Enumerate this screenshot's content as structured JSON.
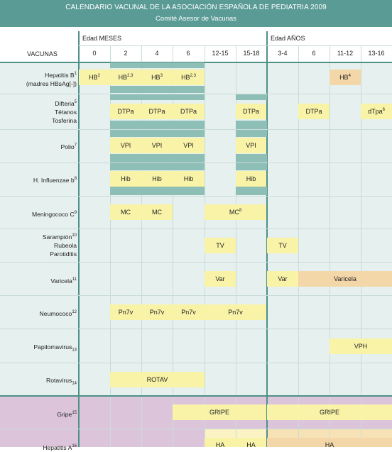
{
  "title": "CALENDARIO VACUNAL DE LA ASOCIACIÓN ESPAÑOLA DE PEDIATRIA 2009",
  "subtitle": "Comité Asesor de Vacunas",
  "edad_meses": "Edad  MESES",
  "edad_anos": "Edad  AÑOS",
  "vacunas_header": "VACUNAS",
  "months": [
    "0",
    "2",
    "4",
    "6",
    "12-15",
    "15-18"
  ],
  "years": [
    "3-4",
    "6",
    "11-12",
    "13-16"
  ],
  "rows": [
    {
      "label_lines": [
        "Hepatitis B",
        "(madres  HBsAg[-])"
      ],
      "sup": "1"
    },
    {
      "label_lines": [
        "Difteria",
        "Tétanos",
        "Tosferina"
      ],
      "sup": "5"
    },
    {
      "label_lines": [
        "Polio"
      ],
      "sup": "7"
    },
    {
      "label_lines": [
        "H. Influenzae b"
      ],
      "sup": "8"
    },
    {
      "label_lines": [
        "Meningococo C"
      ],
      "sup": "9"
    },
    {
      "label_lines": [
        "Sarampión",
        "Rubeola",
        "Parotiditis"
      ],
      "sup": "10"
    },
    {
      "label_lines": [
        "Varicela"
      ],
      "sup": "11"
    },
    {
      "label_lines": [
        "Neumococo"
      ],
      "sup": "12"
    },
    {
      "label_lines": [
        "Papilomavirus"
      ],
      "sup": "13"
    },
    {
      "label_lines": [
        "Rotavirus"
      ],
      "sup": "14"
    },
    {
      "label_lines": [
        "Gripe"
      ],
      "sup": "15"
    },
    {
      "label_lines": [
        "Hepatitis A"
      ],
      "sup": "16"
    }
  ],
  "cells": [
    {
      "text": "HB",
      "sup": "2"
    },
    {
      "text": "HB",
      "sup": "2,3"
    },
    {
      "text": "HB",
      "sup": "3"
    },
    {
      "text": "HB",
      "sup": "2,3"
    },
    {
      "text": "HB",
      "sup": "4"
    },
    {
      "text": "DTPa",
      "sup": ""
    },
    {
      "text": "DTPa",
      "sup": ""
    },
    {
      "text": "DTPa",
      "sup": ""
    },
    {
      "text": "DTPa",
      "sup": ""
    },
    {
      "text": "DTPa",
      "sup": ""
    },
    {
      "text": "dTpa",
      "sup": "6"
    },
    {
      "text": "VPI",
      "sup": ""
    },
    {
      "text": "VPI",
      "sup": ""
    },
    {
      "text": "VPI",
      "sup": ""
    },
    {
      "text": "VPI",
      "sup": ""
    },
    {
      "text": "Hib",
      "sup": ""
    },
    {
      "text": "Hib",
      "sup": ""
    },
    {
      "text": "Hib",
      "sup": ""
    },
    {
      "text": "Hib",
      "sup": ""
    },
    {
      "text": "MC",
      "sup": ""
    },
    {
      "text": "MC",
      "sup": ""
    },
    {
      "text": "MC",
      "sup": "8"
    },
    {
      "text": "TV",
      "sup": ""
    },
    {
      "text": "TV",
      "sup": ""
    },
    {
      "text": "Var",
      "sup": ""
    },
    {
      "text": "Var",
      "sup": ""
    },
    {
      "text": "Varicela",
      "sup": ""
    },
    {
      "text": "Pn7v",
      "sup": ""
    },
    {
      "text": "Pn7v",
      "sup": ""
    },
    {
      "text": "Pn7v",
      "sup": ""
    },
    {
      "text": "Pn7v",
      "sup": ""
    },
    {
      "text": "VPH",
      "sup": ""
    },
    {
      "text": "ROTAV",
      "sup": ""
    },
    {
      "text": "GRIPE",
      "sup": ""
    },
    {
      "text": "GRIPE",
      "sup": ""
    },
    {
      "text": "HA",
      "sup": ""
    },
    {
      "text": "HA",
      "sup": ""
    },
    {
      "text": "HA",
      "sup": ""
    }
  ],
  "colors": {
    "header": "#5b9b95",
    "table_bg": "#e6f0ee",
    "gripe_bg": "#d9c2d8",
    "dose": "#f9f3a8",
    "dose_alt": "#f4d7a8",
    "strip": "#8ebfb6"
  }
}
